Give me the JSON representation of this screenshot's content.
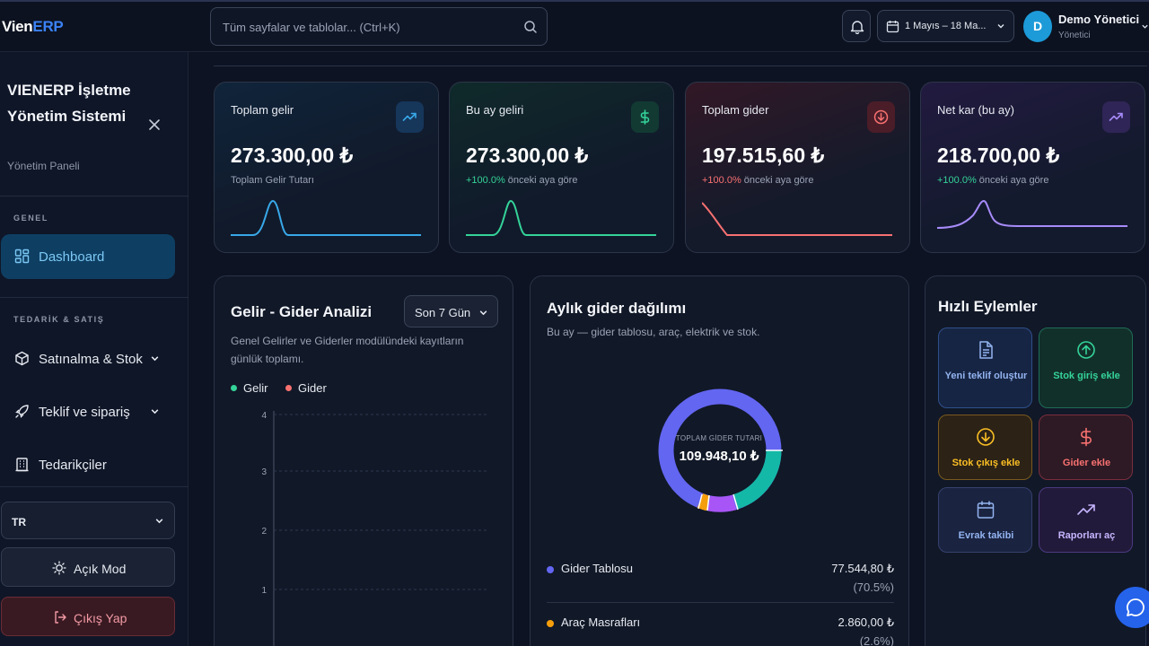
{
  "header": {
    "logo_part1": "Vien",
    "logo_part2": "ERP",
    "search_placeholder": "Tüm sayfalar ve tablolar... (Ctrl+K)",
    "date_range": "1 Mayıs – 18 Ma...",
    "user_initial": "D",
    "user_name": "Demo Yönetici",
    "user_role": "Yönetici"
  },
  "sidebar": {
    "app_name": "VIENERP İşletme Yönetim Sistemi",
    "subtitle": "Yönetim Paneli",
    "section_general": "GENEL",
    "dashboard_label": "Dashboard",
    "section_supply": "TEDARİK & SATIŞ",
    "items": [
      {
        "label": "Satınalma & Stok",
        "icon": "box-icon"
      },
      {
        "label": "Teklif ve sipariş",
        "icon": "rocket-icon"
      },
      {
        "label": "Tedarikçiler",
        "icon": "building-icon"
      }
    ],
    "language": "TR",
    "mode_label": "Açık Mod",
    "logout_label": "Çıkış Yap"
  },
  "stats": [
    {
      "title": "Toplam gelir",
      "value": "273.300,00 ₺",
      "sub": "Toplam Gelir Tutarı",
      "color": "#38a8e8"
    },
    {
      "title": "Bu ay geliri",
      "value": "273.300,00 ₺",
      "pct": "+100.0%",
      "sub": "önceki aya göre",
      "color": "#34d399"
    },
    {
      "title": "Toplam gider",
      "value": "197.515,60 ₺",
      "pct": "+100.0%",
      "sub": "önceki aya göre",
      "color": "#f87171"
    },
    {
      "title": "Net kar (bu ay)",
      "value": "218.700,00 ₺",
      "pct": "+100.0%",
      "sub": "önceki aya göre",
      "color": "#a78bfa"
    }
  ],
  "analysis": {
    "title": "Gelir - Gider Analizi",
    "period": "Son 7 Gün",
    "description": "Genel Gelirler ve Giderler modülündeki kayıtların günlük toplamı.",
    "legend_income": "Gelir",
    "legend_expense": "Gider",
    "y_ticks": [
      "4",
      "3",
      "2",
      "1"
    ]
  },
  "distribution": {
    "title": "Aylık gider dağılımı",
    "description": "Bu ay — gider tablosu, araç, elektrik ve stok.",
    "center_label": "TOPLAM GİDER TUTARI",
    "center_value": "109.948,10 ₺",
    "rows": [
      {
        "name": "Gider Tablosu",
        "amount": "77.544,80 ₺",
        "percent": "(70.5%)",
        "color": "#6366f1"
      },
      {
        "name": "Araç Masrafları",
        "amount": "2.860,00 ₺",
        "percent": "(2.6%)",
        "color": "#f59e0b"
      }
    ]
  },
  "quick_actions": {
    "title": "Hızlı Eylemler",
    "items": [
      {
        "label": "Yeni teklif oluştur",
        "icon": "file-icon"
      },
      {
        "label": "Stok giriş ekle",
        "icon": "arrow-up-circle-icon"
      },
      {
        "label": "Stok çıkış ekle",
        "icon": "arrow-down-circle-icon"
      },
      {
        "label": "Gider ekle",
        "icon": "dollar-icon"
      },
      {
        "label": "Evrak takibi",
        "icon": "calendar-icon"
      },
      {
        "label": "Raporları aç",
        "icon": "trend-icon"
      }
    ]
  }
}
